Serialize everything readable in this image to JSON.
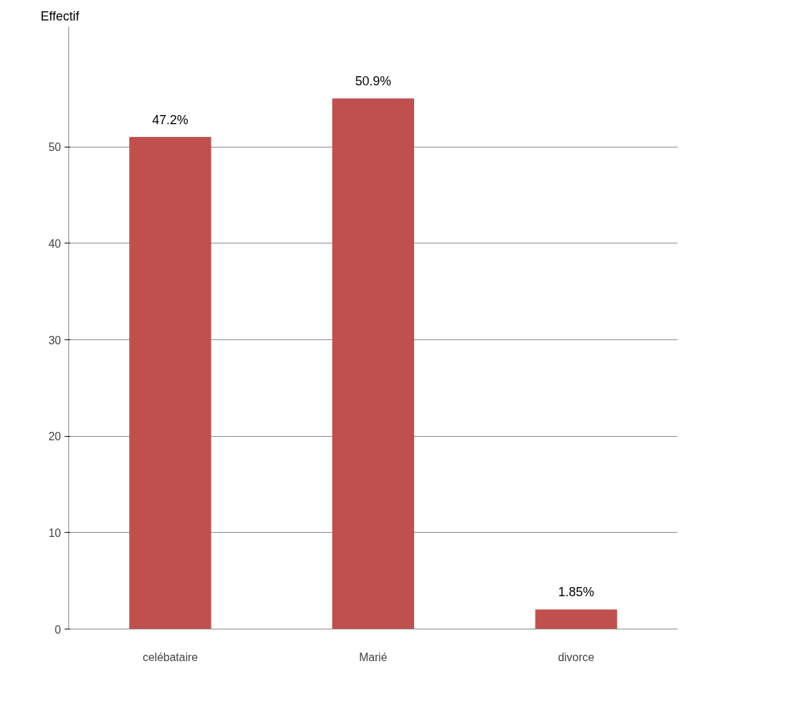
{
  "chart_data": {
    "type": "bar",
    "ylabel": "Effectif",
    "categories": [
      "celébataire",
      "Marié",
      "divorce"
    ],
    "values": [
      51,
      55,
      2
    ],
    "annotations": [
      "47.2%",
      "50.9%",
      "1.85%"
    ],
    "color": "#c0504d",
    "ylim": [
      0,
      62.5
    ],
    "yticks": [
      0,
      10,
      20,
      30,
      40,
      50
    ],
    "grid": "y"
  }
}
